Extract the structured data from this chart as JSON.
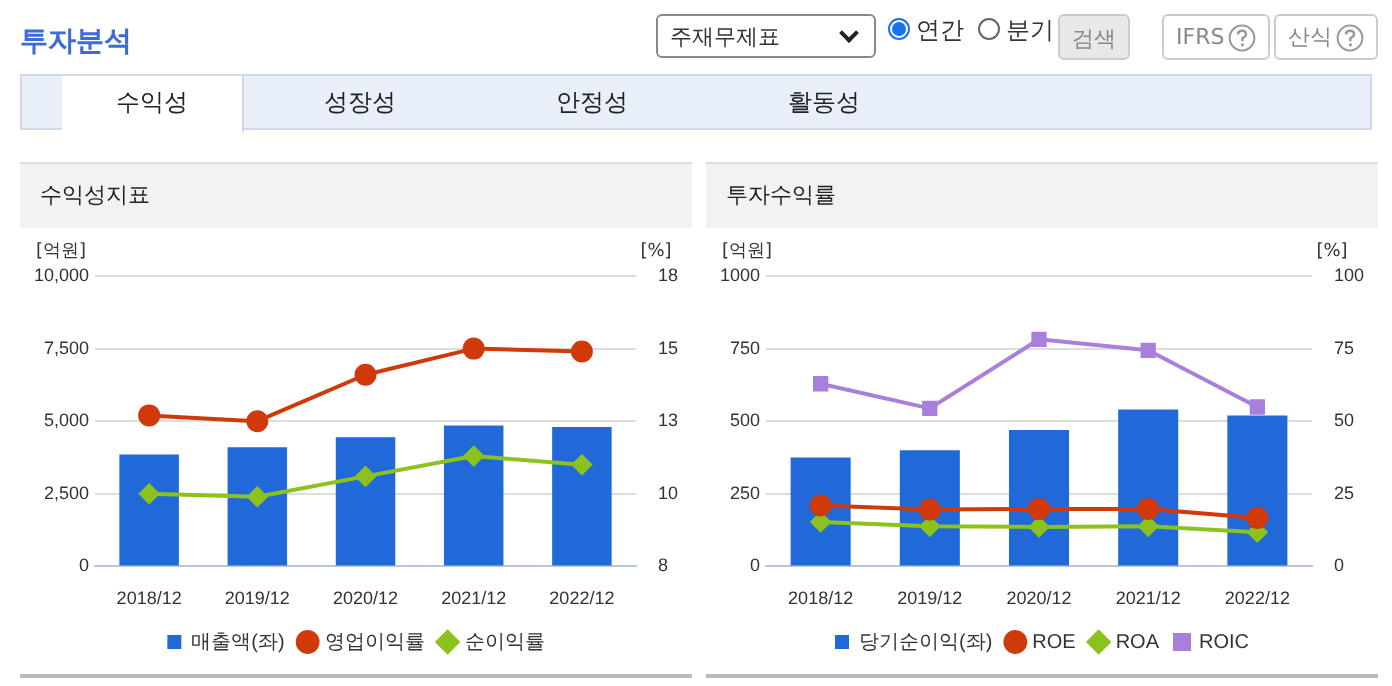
{
  "chart_data": [
    {
      "type": "other",
      "title": "투자분석",
      "annotations": [
        "주재무제표",
        "연간",
        "분기",
        "검색",
        "IFRS",
        "산식",
        "수익성",
        "성장성",
        "안정성",
        "활동성"
      ]
    },
    {
      "type": "bar",
      "title": "수익성지표",
      "ylabel": "[억원]",
      "y2label": "[%]",
      "categories": [
        "2018/12",
        "2019/12",
        "2020/12",
        "2021/12",
        "2022/12"
      ],
      "series": [
        {
          "name": "매출액(좌)",
          "color": "#2169d9",
          "values": [
            3850,
            4100,
            4450,
            4850,
            4800
          ]
        },
        {
          "name": "영업이익률",
          "type": "line",
          "axis": "y2",
          "marker": "circle",
          "color": "#d03a0a",
          "values": [
            13.2,
            13.0,
            14.6,
            15.5,
            15.4
          ]
        },
        {
          "name": "순이익률",
          "type": "line",
          "axis": "y2",
          "marker": "diamond",
          "color": "#8cc21e",
          "values": [
            10.5,
            10.4,
            11.1,
            11.8,
            11.5
          ]
        }
      ],
      "ylim": [
        0,
        10000
      ],
      "yticks": [
        0,
        {
          "value": 2500,
          "label": "2,500"
        },
        {
          "value": 5000,
          "label": "5,000"
        },
        {
          "value": 7500,
          "label": "7,500"
        },
        {
          "value": 10000,
          "label": "10,000"
        }
      ],
      "y2lim": [
        8,
        18
      ],
      "y2ticks": [
        8,
        {
          "value": 10.5,
          "label": "10"
        },
        13,
        {
          "value": 15.5,
          "label": "15"
        },
        18
      ],
      "grid": "y",
      "legend": "bottom"
    },
    {
      "type": "bar",
      "title": "투자수익률",
      "ylabel": "[억원]",
      "y2label": "[%]",
      "categories": [
        "2018/12",
        "2019/12",
        "2020/12",
        "2021/12",
        "2022/12"
      ],
      "series": [
        {
          "name": "당기순이익(좌)",
          "color": "#2169d9",
          "values": [
            375,
            400,
            470,
            540,
            520
          ]
        },
        {
          "name": "ROE",
          "type": "line",
          "axis": "y2",
          "marker": "circle",
          "color": "#d03a0a",
          "values": [
            21,
            19.6,
            19.8,
            19.8,
            16.7
          ]
        },
        {
          "name": "ROA",
          "type": "line",
          "axis": "y2",
          "marker": "diamond",
          "color": "#8cc21e",
          "values": [
            15.3,
            13.8,
            13.6,
            13.8,
            11.8
          ]
        },
        {
          "name": "ROIC",
          "type": "line",
          "axis": "y2",
          "marker": "square",
          "color": "#a97fdc",
          "values": [
            62.9,
            54.4,
            78.2,
            74.4,
            54.9
          ]
        }
      ],
      "ylim": [
        0,
        1000
      ],
      "yticks": [
        0,
        250,
        500,
        750,
        1000
      ],
      "y2lim": [
        0,
        100
      ],
      "y2ticks": [
        0,
        25,
        50,
        75,
        100
      ],
      "grid": "y",
      "legend": "bottom"
    }
  ]
}
